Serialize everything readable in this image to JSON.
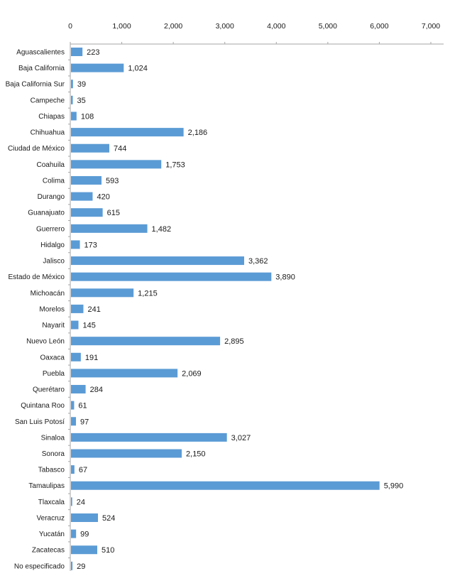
{
  "chart_data": {
    "type": "bar",
    "orientation": "horizontal",
    "title": "",
    "xlabel": "",
    "ylabel": "",
    "xlim": [
      0,
      7000
    ],
    "x_ticks": [
      "0",
      "1,000",
      "2,000",
      "3,000",
      "4,000",
      "5,000",
      "6,000",
      "7,000"
    ],
    "grid": false,
    "legend": "none",
    "bar_color": "#5b9bd5",
    "categories": [
      "Aguascalientes",
      "Baja California",
      "Baja California Sur",
      "Campeche",
      "Chiapas",
      "Chihuahua",
      "Ciudad de México",
      "Coahuila",
      "Colima",
      "Durango",
      "Guanajuato",
      "Guerrero",
      "Hidalgo",
      "Jalisco",
      "Estado de México",
      "Michoacán",
      "Morelos",
      "Nayarit",
      "Nuevo León",
      "Oaxaca",
      "Puebla",
      "Querétaro",
      "Quintana Roo",
      "San Luis Potosí",
      "Sinaloa",
      "Sonora",
      "Tabasco",
      "Tamaulipas",
      "Tlaxcala",
      "Veracruz",
      "Yucatán",
      "Zacatecas",
      "No especificado"
    ],
    "values": [
      223,
      1024,
      39,
      35,
      108,
      2186,
      744,
      1753,
      593,
      420,
      615,
      1482,
      173,
      3362,
      3890,
      1215,
      241,
      145,
      2895,
      191,
      2069,
      284,
      61,
      97,
      3027,
      2150,
      67,
      5990,
      24,
      524,
      99,
      510,
      29
    ],
    "value_labels": [
      "223",
      "1,024",
      "39",
      "35",
      "108",
      "2,186",
      "744",
      "1,753",
      "593",
      "420",
      "615",
      "1,482",
      "173",
      "3,362",
      "3,890",
      "1,215",
      "241",
      "145",
      "2,895",
      "191",
      "2,069",
      "284",
      "61",
      "97",
      "3,027",
      "2,150",
      "67",
      "5,990",
      "24",
      "524",
      "99",
      "510",
      "29"
    ]
  }
}
